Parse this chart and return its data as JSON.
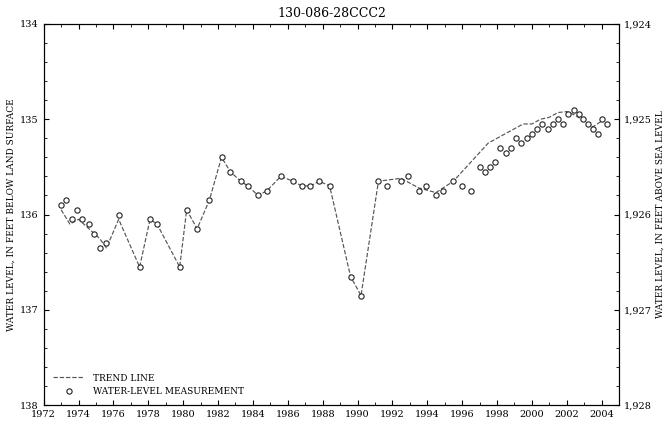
{
  "title": "130-086-28CCC2",
  "ylabel_left": "WATER LEVEL, IN FEET BELOW LAND SURFACE",
  "ylabel_right": "WATER LEVEL, IN FEET ABOVE SEA LEVEL",
  "ylim_left": [
    134,
    138
  ],
  "ylim_right": [
    1924,
    1928
  ],
  "xlim": [
    1972,
    2005
  ],
  "yticks_left": [
    134,
    135,
    136,
    137,
    138
  ],
  "yticks_right": [
    1928,
    1927,
    1926,
    1925,
    1924
  ],
  "xticks": [
    1972,
    1974,
    1976,
    1978,
    1980,
    1982,
    1984,
    1986,
    1988,
    1990,
    1992,
    1994,
    1996,
    1998,
    2000,
    2002,
    2004
  ],
  "measurement_x": [
    1973.0,
    1973.3,
    1973.6,
    1973.9,
    1974.2,
    1974.6,
    1974.9,
    1975.2,
    1975.6,
    1976.3,
    1977.5,
    1978.1,
    1978.5,
    1979.8,
    1980.2,
    1980.8,
    1981.5,
    1982.2,
    1982.7,
    1983.3,
    1983.7,
    1984.3,
    1984.8,
    1985.6,
    1986.3,
    1986.8,
    1987.3,
    1987.8,
    1988.4,
    1989.6,
    1990.2,
    1991.2,
    1991.7,
    1992.5,
    1992.9,
    1993.5,
    1993.9,
    1994.5,
    1994.9,
    1995.5,
    1996.0,
    1996.5,
    1997.0,
    1997.3,
    1997.6,
    1997.9,
    1998.2,
    1998.5,
    1998.8,
    1999.1,
    1999.4,
    1999.7,
    2000.0,
    2000.3,
    2000.6,
    2000.9,
    2001.2,
    2001.5,
    2001.8,
    2002.1,
    2002.4,
    2002.7,
    2002.95,
    2003.2,
    2003.5,
    2003.8,
    2004.0,
    2004.3
  ],
  "measurement_y": [
    135.9,
    135.85,
    136.05,
    135.95,
    136.05,
    136.1,
    136.2,
    136.35,
    136.3,
    136.0,
    136.55,
    136.05,
    136.1,
    136.55,
    135.95,
    136.15,
    135.85,
    135.4,
    135.55,
    135.65,
    135.7,
    135.8,
    135.75,
    135.6,
    135.65,
    135.7,
    135.7,
    135.65,
    135.7,
    136.65,
    136.85,
    135.65,
    135.7,
    135.65,
    135.6,
    135.75,
    135.7,
    135.8,
    135.75,
    135.65,
    135.7,
    135.75,
    135.5,
    135.55,
    135.5,
    135.45,
    135.3,
    135.35,
    135.3,
    135.2,
    135.25,
    135.2,
    135.15,
    135.1,
    135.05,
    135.1,
    135.05,
    135.0,
    135.05,
    134.95,
    134.9,
    134.95,
    135.0,
    135.05,
    135.1,
    135.15,
    135.0,
    135.05
  ],
  "trend_x": [
    1973.0,
    1973.5,
    1974.0,
    1974.6,
    1975.2,
    1975.6,
    1976.3,
    1977.5,
    1978.1,
    1978.5,
    1979.8,
    1980.2,
    1980.8,
    1981.5,
    1982.2,
    1982.7,
    1983.3,
    1983.7,
    1984.3,
    1984.8,
    1985.6,
    1986.3,
    1986.8,
    1987.3,
    1987.8,
    1988.4,
    1989.6,
    1990.2,
    1991.2,
    1992.5,
    1993.5,
    1994.5,
    1995.5,
    1996.0,
    1996.5,
    1997.0,
    1997.5,
    1998.0,
    1998.5,
    1999.0,
    1999.5,
    2000.0,
    2000.5,
    2001.0,
    2001.5,
    2002.0,
    2002.5,
    2003.0,
    2003.5,
    2004.0
  ],
  "trend_y": [
    135.95,
    136.1,
    136.05,
    136.15,
    136.25,
    136.35,
    136.05,
    136.55,
    136.05,
    136.1,
    136.55,
    135.95,
    136.15,
    135.85,
    135.4,
    135.55,
    135.65,
    135.7,
    135.8,
    135.75,
    135.6,
    135.65,
    135.7,
    135.7,
    135.65,
    135.7,
    136.65,
    136.85,
    135.65,
    135.62,
    135.72,
    135.77,
    135.65,
    135.55,
    135.45,
    135.35,
    135.25,
    135.2,
    135.15,
    135.1,
    135.05,
    135.05,
    135.0,
    134.98,
    134.93,
    134.92,
    134.96,
    135.02,
    135.08,
    135.02
  ],
  "marker_color": "#222222",
  "line_color": "#555555",
  "background_color": "#ffffff"
}
